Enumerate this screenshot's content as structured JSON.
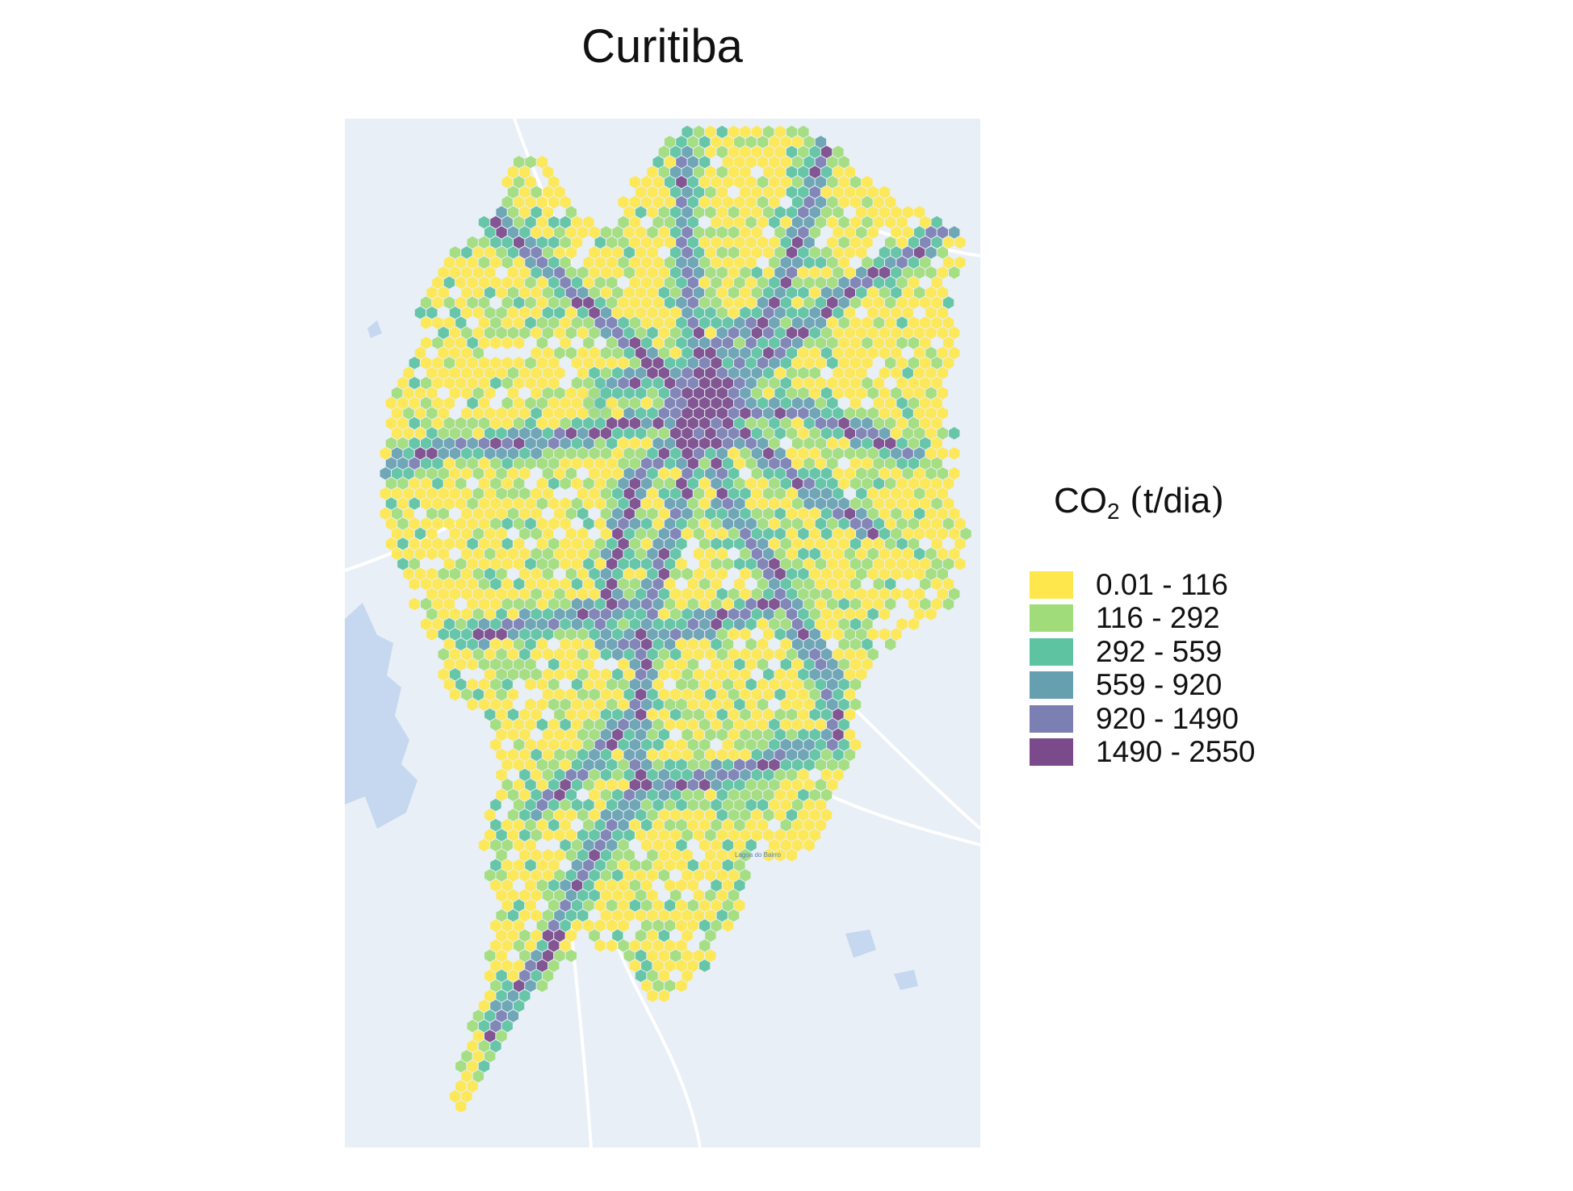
{
  "map": {
    "title": "Curitiba",
    "place_label": "Lagoa do Bairro",
    "base_colors": {
      "background": "#e8eff7",
      "water": "#c5d8ef",
      "roads": "#ffffff",
      "hex_stroke": "#ffffff"
    }
  },
  "legend": {
    "title_main": "CO",
    "title_sub": "2",
    "title_unit_open": "(",
    "title_unit": "t/dia",
    "title_unit_close": ")",
    "classes": [
      {
        "label": "0.01 - 116",
        "color": "#fde74c"
      },
      {
        "label": "116 - 292",
        "color": "#a0dd7a"
      },
      {
        "label": "292 - 559",
        "color": "#5ec3a1"
      },
      {
        "label": "559 - 920",
        "color": "#66a0b0"
      },
      {
        "label": "920 - 1490",
        "color": "#7b7fb2"
      },
      {
        "label": "1490 - 2550",
        "color": "#7a4a8a"
      }
    ]
  }
}
